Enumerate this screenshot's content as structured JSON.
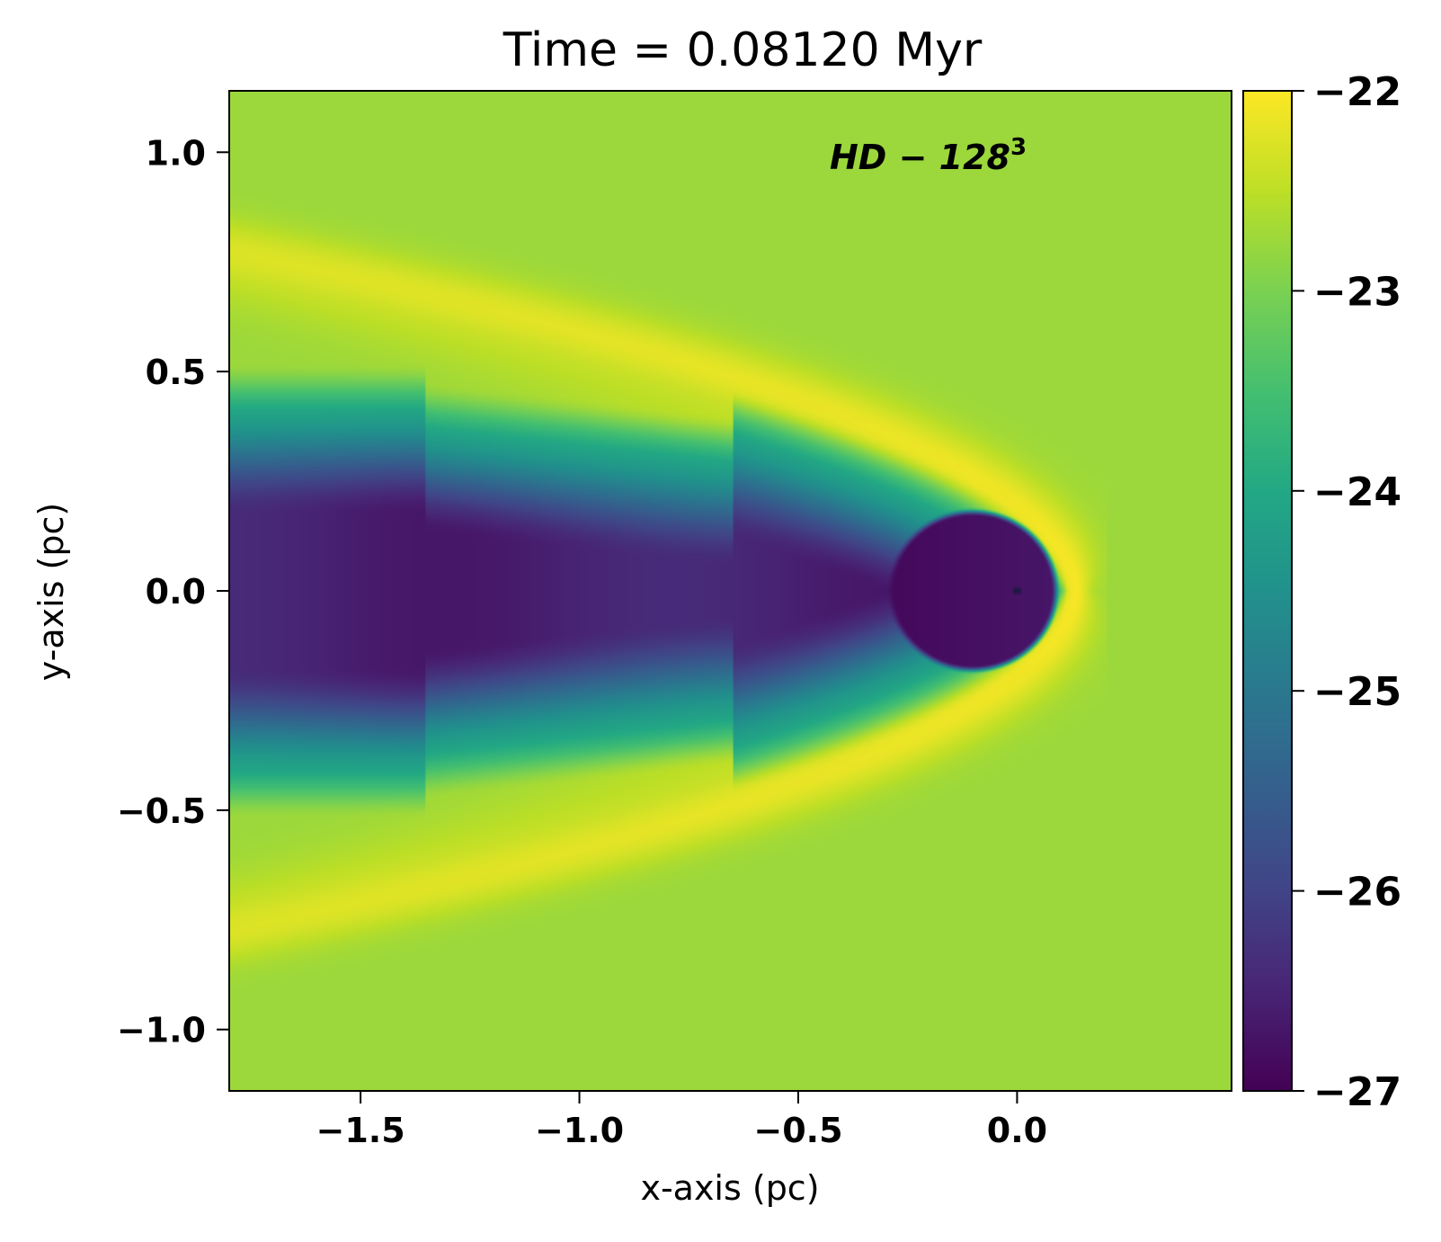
{
  "chart_data": {
    "type": "heatmap",
    "title": "Time = 0.08120 Myr",
    "xlabel": "x-axis (pc)",
    "ylabel": "y-axis (pc)",
    "xlim": [
      -1.8,
      0.49
    ],
    "ylim": [
      -1.14,
      1.14
    ],
    "xticks": [
      -1.5,
      -1.0,
      -0.5,
      0.0
    ],
    "xtick_labels": [
      "−1.5",
      "−1.0",
      "−0.5",
      "0.0"
    ],
    "yticks": [
      1.0,
      0.5,
      0.0,
      -0.5,
      -1.0
    ],
    "ytick_labels": [
      "1.0",
      "0.5",
      "0.0",
      "−0.5",
      "−1.0"
    ],
    "annotation": {
      "label_main": "HD − 128",
      "label_sup": "3"
    },
    "colorbar": {
      "colormap": "viridis",
      "range": [
        -27,
        -22
      ],
      "ticks": [
        -22,
        -23,
        -24,
        -25,
        -26,
        -27
      ],
      "tick_labels": [
        "−22",
        "−23",
        "−24",
        "−25",
        "−26",
        "−27"
      ]
    },
    "field": {
      "ambient_value": -22.75,
      "shell_peak_value": -22.15,
      "wake_edge_value": -24.0,
      "wake_core_value": -26.55,
      "bubble_value": -26.9,
      "apex_x": 0.155,
      "apex_y": 0.0,
      "wake_halfwidth_far": 0.52
    }
  }
}
